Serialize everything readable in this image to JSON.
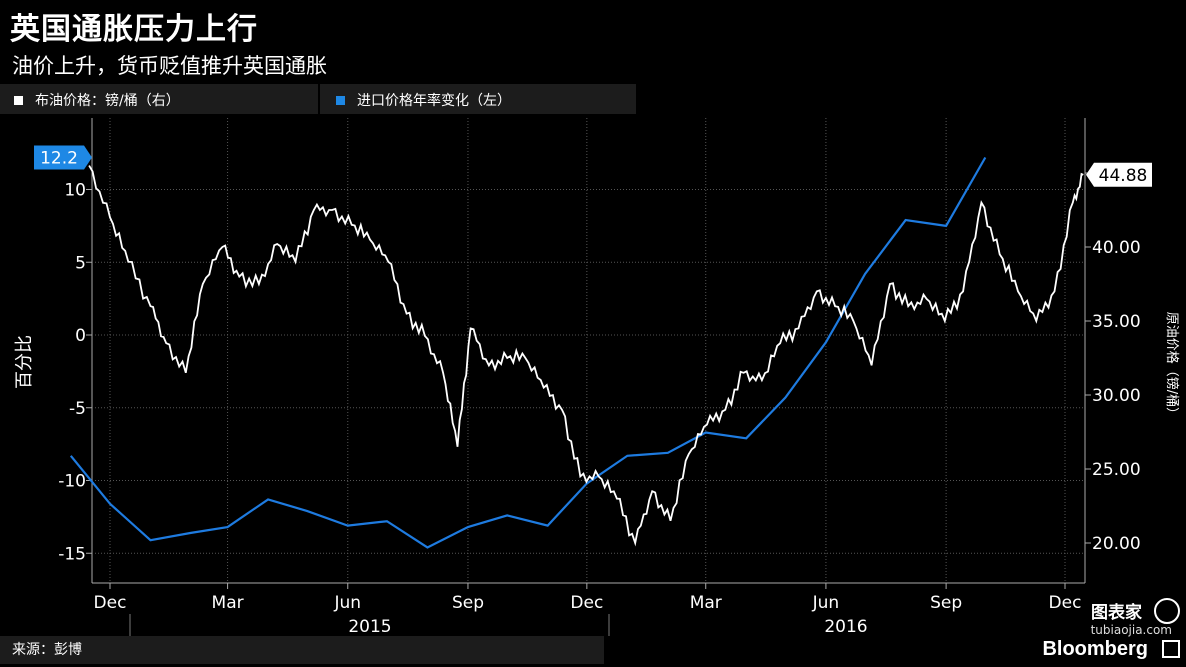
{
  "title": "英国通胀压力上行",
  "subtitle": "油价上升，货币贬值推升英国通胀",
  "legend": [
    {
      "label": "布油价格：镑/桶（右）",
      "color": "#ffffff"
    },
    {
      "label": "进口价格年率变化（左）",
      "color": "#1e88e5"
    }
  ],
  "source": "来源：彭博",
  "watermark": {
    "cn": "图表家",
    "url": "tubiaojia.com",
    "brand": "Bloomberg"
  },
  "colors": {
    "background": "#000000",
    "oil": "#ffffff",
    "import": "#1e7be0",
    "label_bg": "#1e88e5"
  },
  "chart_data": {
    "type": "line",
    "x_tick_labels": [
      "Dec",
      "Mar",
      "Jun",
      "Sep",
      "Dec",
      "Mar",
      "Jun",
      "Sep",
      "Dec"
    ],
    "x_year_labels": [
      "2015",
      "2016"
    ],
    "left_axis": {
      "label": "百分比",
      "ticks": [
        10,
        5,
        0,
        -5,
        -10,
        -15
      ],
      "range": [
        -17.5,
        14.5
      ]
    },
    "right_axis": {
      "label": "原油价格（镑/桶）",
      "ticks": [
        "45.00",
        "40.00",
        "35.00",
        "30.00",
        "25.00",
        "20.00"
      ],
      "range": [
        16.5,
        46
      ]
    },
    "current_value_labels": {
      "left": "12.2",
      "right": "44.88"
    },
    "series": [
      {
        "name": "进口价格年率变化（左）",
        "axis": "left",
        "x": [
          "2014-11",
          "2014-12",
          "2015-01",
          "2015-02",
          "2015-03",
          "2015-04",
          "2015-05",
          "2015-06",
          "2015-07",
          "2015-08",
          "2015-09",
          "2015-10",
          "2015-11",
          "2015-12",
          "2016-01",
          "2016-02",
          "2016-03",
          "2016-04",
          "2016-05",
          "2016-06",
          "2016-07",
          "2016-08",
          "2016-09",
          "2016-10"
        ],
        "values": [
          -8.3,
          -11.6,
          -14.1,
          -13.6,
          -13.2,
          -11.3,
          -12.1,
          -13.1,
          -12.8,
          -14.6,
          -13.2,
          -12.4,
          -13.1,
          -10.2,
          -8.3,
          -8.1,
          -6.7,
          -7.1,
          -4.3,
          -0.5,
          4.2,
          7.9,
          7.5,
          12.2
        ]
      },
      {
        "name": "布油价格：镑/桶（右）",
        "axis": "right",
        "x": [
          "2014-11-15",
          "2014-12-01",
          "2014-12-15",
          "2015-01-01",
          "2015-01-13",
          "2015-01-28",
          "2015-02-10",
          "2015-02-25",
          "2015-03-10",
          "2015-03-25",
          "2015-04-08",
          "2015-04-22",
          "2015-05-06",
          "2015-05-20",
          "2015-06-04",
          "2015-06-18",
          "2015-07-02",
          "2015-07-16",
          "2015-07-30",
          "2015-08-13",
          "2015-08-24",
          "2015-09-03",
          "2015-09-17",
          "2015-10-01",
          "2015-10-15",
          "2015-10-29",
          "2015-11-12",
          "2015-11-26",
          "2015-12-10",
          "2015-12-24",
          "2016-01-07",
          "2016-01-20",
          "2016-02-03",
          "2016-02-17",
          "2016-03-02",
          "2016-03-16",
          "2016-03-30",
          "2016-04-13",
          "2016-04-27",
          "2016-05-11",
          "2016-05-25",
          "2016-06-08",
          "2016-06-22",
          "2016-07-06",
          "2016-07-20",
          "2016-08-03",
          "2016-08-17",
          "2016-08-31",
          "2016-09-14",
          "2016-09-28",
          "2016-10-12",
          "2016-10-26",
          "2016-11-09",
          "2016-11-23",
          "2016-12-07",
          "2016-12-15"
        ],
        "values": [
          45.5,
          42,
          39,
          36,
          33.5,
          31.5,
          37.5,
          40,
          38,
          37.5,
          40.2,
          39,
          42.5,
          42.5,
          41.5,
          40.5,
          39,
          35.5,
          34,
          31.5,
          26.5,
          34.5,
          32,
          32.5,
          32.5,
          30.5,
          29,
          24.5,
          24.5,
          23,
          20,
          23.5,
          21.5,
          26,
          28,
          29,
          31.5,
          31,
          33.5,
          34.5,
          37,
          36,
          35,
          32,
          37.5,
          36,
          36.5,
          35,
          37,
          43,
          39.5,
          37,
          35,
          37,
          43,
          44.88
        ]
      }
    ]
  }
}
